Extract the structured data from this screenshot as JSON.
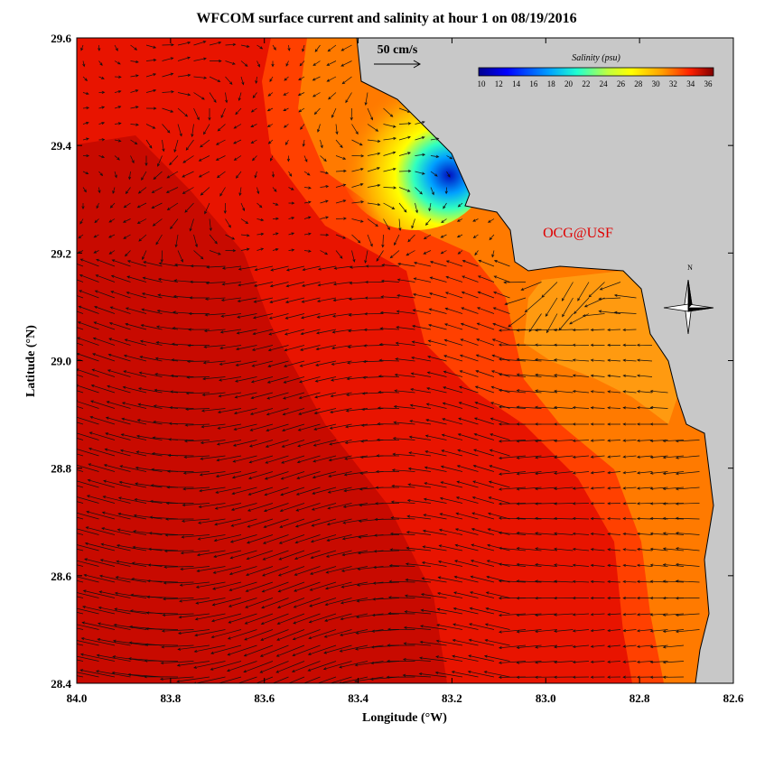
{
  "title": "WFCOM surface current and salinity at hour 1 on 08/19/2016",
  "x_axis": {
    "label": "Longitude (°W)",
    "ticks": [
      "84.0",
      "83.8",
      "83.6",
      "83.4",
      "83.2",
      "83.0",
      "82.8",
      "82.6"
    ]
  },
  "y_axis": {
    "label": "Latitude (°N)",
    "ticks": [
      "29.6",
      "29.4",
      "29.2",
      "29.0",
      "28.8",
      "28.6",
      "28.4"
    ]
  },
  "scale_arrow": "50 cm/s",
  "colorbar": {
    "title": "Salinity (psu)",
    "ticks": [
      "10",
      "12",
      "14",
      "16",
      "18",
      "20",
      "22",
      "24",
      "26",
      "28",
      "30",
      "32",
      "34",
      "36"
    ]
  },
  "credit": "OCG@USF",
  "compass": "N"
}
